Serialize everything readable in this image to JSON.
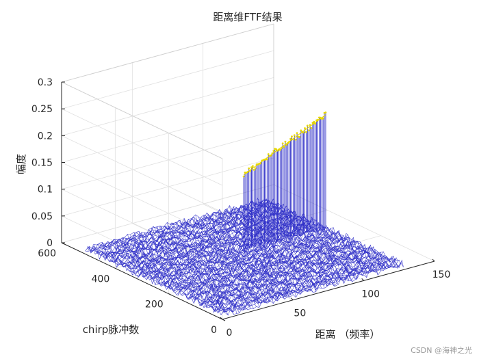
{
  "chart_data": {
    "type": "surface",
    "title": "距离维FTF结果",
    "xlabel": "距离 （频率）",
    "ylabel": "chirp脉冲数",
    "zlabel": "幅度",
    "xlim": [
      0,
      150
    ],
    "ylim": [
      0,
      600
    ],
    "zlim": [
      0,
      0.3
    ],
    "xticks": [
      "0",
      "50",
      "100",
      "150"
    ],
    "yticks": [
      "0",
      "200",
      "400",
      "600"
    ],
    "zticks": [
      "0",
      "0.05",
      "0.1",
      "0.15",
      "0.2",
      "0.25",
      "0.3"
    ],
    "grid": true,
    "data_extent": {
      "x": [
        0,
        128
      ],
      "y": [
        0,
        512
      ]
    },
    "noise_floor": 0.01,
    "ridge": {
      "x_start": 70,
      "x_end": 128,
      "y": 290,
      "peak_start": 0.15,
      "peak_end": 0.22
    },
    "colors": {
      "mesh": "#3030c8",
      "peak": "#e8d800",
      "axes": "#262626",
      "grid": "#e0e0e0"
    }
  },
  "watermark": "CSDN @海神之光"
}
